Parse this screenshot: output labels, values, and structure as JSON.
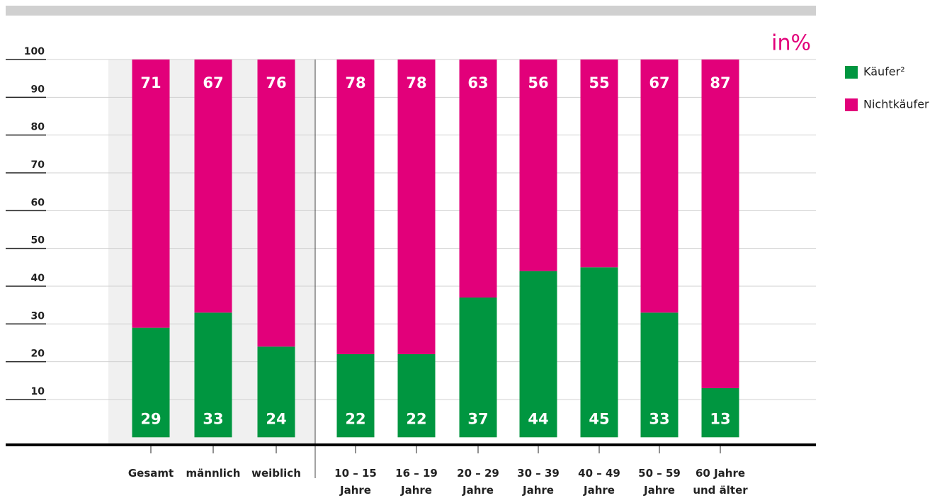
{
  "chart_data": {
    "type": "stacked_bar",
    "unit_label": "in%",
    "categories": [
      "Gesamt",
      "männlich",
      "weiblich",
      "10 – 15\nJahre",
      "16 – 19\nJahre",
      "20 – 29\nJahre",
      "30 – 39\nJahre",
      "40 – 49\nJahre",
      "50 – 59\nJahre",
      "60 Jahre\nund älter"
    ],
    "series": [
      {
        "name": "Käufer²",
        "color": "#009640",
        "values": [
          29,
          33,
          24,
          22,
          22,
          37,
          44,
          45,
          33,
          13
        ]
      },
      {
        "name": "Nichtkäufer",
        "color": "#e2007a",
        "values": [
          71,
          67,
          76,
          78,
          78,
          63,
          56,
          55,
          67,
          87
        ]
      }
    ],
    "ylim": [
      0,
      100
    ],
    "yticks": [
      10,
      20,
      30,
      40,
      50,
      60,
      70,
      80,
      90,
      100
    ],
    "grid": true
  }
}
